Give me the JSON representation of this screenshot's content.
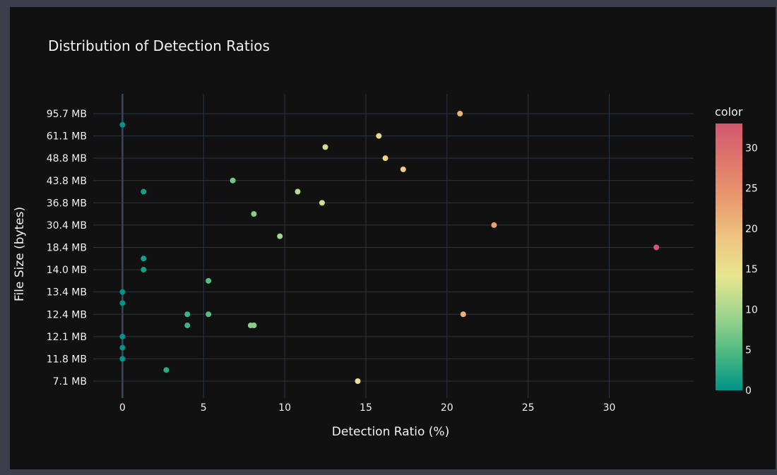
{
  "chart_data": {
    "type": "scatter",
    "title": "Distribution of Detection Ratios",
    "xlabel": "Detection Ratio (%)",
    "ylabel": "File Size (bytes)",
    "xlim": [
      -1.8,
      35.2
    ],
    "x_ticks": [
      0,
      5,
      10,
      15,
      20,
      25,
      30
    ],
    "y_categories": [
      "7.1 MB",
      "11.8 MB",
      "12.1 MB",
      "12.4 MB",
      "13.4 MB",
      "14.0 MB",
      "18.4 MB",
      "30.4 MB",
      "36.8 MB",
      "43.8 MB",
      "48.8 MB",
      "61.1 MB",
      "95.7 MB"
    ],
    "grid": true,
    "colorbar": {
      "title": "color",
      "range": [
        0,
        33
      ],
      "ticks": [
        0,
        5,
        10,
        15,
        20,
        25,
        30
      ],
      "colors": [
        "#009488",
        "#4fb981",
        "#a2d58e",
        "#e8e58f",
        "#eec580",
        "#ea9a6f",
        "#e0786c",
        "#d1576f"
      ]
    },
    "points": [
      {
        "x": 0,
        "y": 12.5,
        "c": 0
      },
      {
        "x": 15.8,
        "y": 12.0,
        "c": 15.8
      },
      {
        "x": 20.8,
        "y": 13.0,
        "c": 20.8
      },
      {
        "x": 12.5,
        "y": 11.5,
        "c": 12.5
      },
      {
        "x": 16.2,
        "y": 11.0,
        "c": 16.2
      },
      {
        "x": 17.3,
        "y": 10.5,
        "c": 17.3
      },
      {
        "x": 6.8,
        "y": 10.0,
        "c": 6.8
      },
      {
        "x": 1.3,
        "y": 9.5,
        "c": 1.3
      },
      {
        "x": 10.8,
        "y": 9.5,
        "c": 10.8
      },
      {
        "x": 12.3,
        "y": 9.0,
        "c": 12.3
      },
      {
        "x": 8.1,
        "y": 8.5,
        "c": 8.1
      },
      {
        "x": 22.9,
        "y": 8.0,
        "c": 22.9
      },
      {
        "x": 9.7,
        "y": 7.5,
        "c": 9.7
      },
      {
        "x": 32.9,
        "y": 7.0,
        "c": 32.9
      },
      {
        "x": 1.3,
        "y": 6.5,
        "c": 1.3
      },
      {
        "x": 1.3,
        "y": 6.0,
        "c": 1.3
      },
      {
        "x": 5.3,
        "y": 5.5,
        "c": 5.3
      },
      {
        "x": 0,
        "y": 5.0,
        "c": 0
      },
      {
        "x": 0,
        "y": 4.5,
        "c": 0
      },
      {
        "x": 4.0,
        "y": 4.0,
        "c": 4.0
      },
      {
        "x": 5.3,
        "y": 4.0,
        "c": 5.3
      },
      {
        "x": 21.0,
        "y": 4.0,
        "c": 21.0
      },
      {
        "x": 4.0,
        "y": 3.5,
        "c": 4.0
      },
      {
        "x": 7.9,
        "y": 3.5,
        "c": 7.9
      },
      {
        "x": 8.1,
        "y": 3.5,
        "c": 8.1
      },
      {
        "x": 0,
        "y": 3.0,
        "c": 0
      },
      {
        "x": 0,
        "y": 2.5,
        "c": 0
      },
      {
        "x": 0,
        "y": 2.0,
        "c": 0
      },
      {
        "x": 2.7,
        "y": 1.5,
        "c": 2.7
      },
      {
        "x": 14.5,
        "y": 1.0,
        "c": 14.5
      }
    ]
  }
}
